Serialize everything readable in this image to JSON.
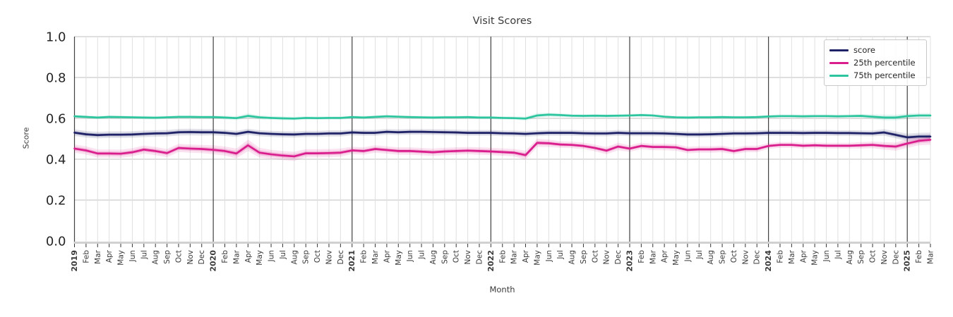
{
  "figure": {
    "title": "Visit Scores",
    "xlabel": "Month",
    "ylabel": "Score"
  },
  "chart_data": {
    "type": "line",
    "title": "Visit Scores",
    "xlabel": "Month",
    "ylabel": "Score",
    "ylim": [
      0.0,
      1.0
    ],
    "yticks": [
      0.0,
      0.2,
      0.4,
      0.6,
      0.8,
      1.0
    ],
    "grid": true,
    "legend_position": "upper right",
    "x_labels": [
      "2019",
      "Feb",
      "Mar",
      "Apr",
      "May",
      "Jun",
      "Jul",
      "Aug",
      "Sep",
      "Oct",
      "Nov",
      "Dec",
      "2020",
      "Feb",
      "Mar",
      "Apr",
      "May",
      "Jun",
      "Jul",
      "Aug",
      "Sep",
      "Oct",
      "Nov",
      "Dec",
      "2021",
      "Feb",
      "Mar",
      "Apr",
      "May",
      "Jun",
      "Jul",
      "Aug",
      "Sep",
      "Oct",
      "Nov",
      "Dec",
      "2022",
      "Feb",
      "Mar",
      "Apr",
      "May",
      "Jun",
      "Jul",
      "Aug",
      "Sep",
      "Oct",
      "Nov",
      "Dec",
      "2023",
      "Feb",
      "Mar",
      "Apr",
      "May",
      "Jun",
      "Jul",
      "Aug",
      "Sep",
      "Oct",
      "Nov",
      "Dec",
      "2024",
      "Feb",
      "Mar",
      "Apr",
      "May",
      "Jun",
      "Jul",
      "Aug",
      "Sep",
      "Oct",
      "Nov",
      "Dec",
      "2025",
      "Feb",
      "Mar"
    ],
    "series": [
      {
        "name": "score",
        "color": "#1f2266",
        "values": [
          0.53,
          0.522,
          0.518,
          0.52,
          0.52,
          0.521,
          0.524,
          0.526,
          0.527,
          0.532,
          0.533,
          0.532,
          0.532,
          0.529,
          0.524,
          0.534,
          0.527,
          0.524,
          0.522,
          0.521,
          0.524,
          0.524,
          0.526,
          0.526,
          0.531,
          0.529,
          0.529,
          0.534,
          0.532,
          0.534,
          0.534,
          0.533,
          0.532,
          0.531,
          0.529,
          0.529,
          0.529,
          0.527,
          0.526,
          0.524,
          0.527,
          0.529,
          0.529,
          0.529,
          0.527,
          0.526,
          0.526,
          0.529,
          0.527,
          0.527,
          0.527,
          0.526,
          0.524,
          0.521,
          0.521,
          0.522,
          0.524,
          0.526,
          0.526,
          0.527,
          0.529,
          0.529,
          0.529,
          0.528,
          0.529,
          0.529,
          0.528,
          0.528,
          0.527,
          0.526,
          0.531,
          0.519,
          0.507,
          0.511,
          0.511
        ],
        "band_halfwidth": [
          0.016,
          0.016,
          0.016,
          0.016,
          0.016,
          0.016,
          0.016,
          0.016,
          0.016,
          0.016,
          0.016,
          0.016,
          0.015,
          0.015,
          0.015,
          0.015,
          0.015,
          0.015,
          0.015,
          0.015,
          0.015,
          0.015,
          0.015,
          0.015,
          0.014,
          0.014,
          0.014,
          0.014,
          0.014,
          0.014,
          0.014,
          0.014,
          0.014,
          0.014,
          0.014,
          0.014,
          0.014,
          0.014,
          0.014,
          0.014,
          0.014,
          0.014,
          0.014,
          0.014,
          0.014,
          0.014,
          0.014,
          0.014,
          0.014,
          0.014,
          0.014,
          0.014,
          0.014,
          0.014,
          0.014,
          0.014,
          0.014,
          0.014,
          0.014,
          0.014,
          0.014,
          0.014,
          0.014,
          0.014,
          0.014,
          0.014,
          0.014,
          0.014,
          0.014,
          0.014,
          0.016,
          0.017,
          0.018,
          0.018,
          0.019
        ]
      },
      {
        "name": "25th percentile",
        "color": "#da1d8c",
        "values": [
          0.452,
          0.443,
          0.428,
          0.428,
          0.427,
          0.434,
          0.447,
          0.44,
          0.43,
          0.455,
          0.452,
          0.45,
          0.446,
          0.44,
          0.428,
          0.468,
          0.432,
          0.424,
          0.418,
          0.414,
          0.429,
          0.429,
          0.43,
          0.432,
          0.443,
          0.44,
          0.45,
          0.445,
          0.44,
          0.44,
          0.437,
          0.434,
          0.438,
          0.44,
          0.442,
          0.44,
          0.438,
          0.435,
          0.432,
          0.42,
          0.48,
          0.478,
          0.472,
          0.47,
          0.465,
          0.455,
          0.442,
          0.462,
          0.452,
          0.465,
          0.46,
          0.46,
          0.458,
          0.445,
          0.448,
          0.448,
          0.45,
          0.44,
          0.45,
          0.45,
          0.465,
          0.47,
          0.47,
          0.466,
          0.468,
          0.466,
          0.466,
          0.466,
          0.468,
          0.47,
          0.465,
          0.462,
          0.477,
          0.49,
          0.495
        ],
        "band_halfwidth": [
          0.02,
          0.02,
          0.02,
          0.02,
          0.02,
          0.02,
          0.02,
          0.02,
          0.02,
          0.02,
          0.02,
          0.02,
          0.022,
          0.022,
          0.024,
          0.028,
          0.024,
          0.022,
          0.022,
          0.022,
          0.02,
          0.02,
          0.02,
          0.02,
          0.018,
          0.018,
          0.018,
          0.018,
          0.018,
          0.018,
          0.018,
          0.018,
          0.018,
          0.018,
          0.018,
          0.018,
          0.018,
          0.018,
          0.018,
          0.022,
          0.02,
          0.018,
          0.016,
          0.016,
          0.016,
          0.016,
          0.018,
          0.018,
          0.016,
          0.016,
          0.016,
          0.016,
          0.016,
          0.016,
          0.016,
          0.016,
          0.016,
          0.016,
          0.016,
          0.016,
          0.014,
          0.014,
          0.014,
          0.014,
          0.014,
          0.014,
          0.014,
          0.014,
          0.016,
          0.016,
          0.018,
          0.02,
          0.022,
          0.022,
          0.024
        ]
      },
      {
        "name": "75th percentile",
        "color": "#2cc59e",
        "values": [
          0.61,
          0.607,
          0.604,
          0.607,
          0.606,
          0.605,
          0.604,
          0.603,
          0.605,
          0.607,
          0.607,
          0.606,
          0.606,
          0.604,
          0.601,
          0.612,
          0.605,
          0.602,
          0.6,
          0.599,
          0.602,
          0.601,
          0.602,
          0.602,
          0.606,
          0.604,
          0.607,
          0.61,
          0.608,
          0.606,
          0.605,
          0.604,
          0.605,
          0.605,
          0.606,
          0.604,
          0.604,
          0.602,
          0.601,
          0.599,
          0.614,
          0.618,
          0.616,
          0.613,
          0.612,
          0.613,
          0.612,
          0.613,
          0.614,
          0.616,
          0.614,
          0.608,
          0.605,
          0.604,
          0.605,
          0.605,
          0.606,
          0.605,
          0.605,
          0.606,
          0.609,
          0.611,
          0.611,
          0.61,
          0.611,
          0.611,
          0.61,
          0.611,
          0.612,
          0.608,
          0.604,
          0.604,
          0.611,
          0.614,
          0.614
        ],
        "band_halfwidth": [
          0.008,
          0.008,
          0.008,
          0.008,
          0.008,
          0.008,
          0.008,
          0.008,
          0.008,
          0.008,
          0.008,
          0.008,
          0.009,
          0.009,
          0.01,
          0.012,
          0.01,
          0.009,
          0.009,
          0.009,
          0.008,
          0.008,
          0.008,
          0.008,
          0.008,
          0.008,
          0.008,
          0.008,
          0.008,
          0.008,
          0.008,
          0.008,
          0.008,
          0.008,
          0.008,
          0.008,
          0.008,
          0.008,
          0.008,
          0.01,
          0.012,
          0.01,
          0.009,
          0.008,
          0.008,
          0.008,
          0.008,
          0.008,
          0.008,
          0.008,
          0.008,
          0.008,
          0.008,
          0.008,
          0.008,
          0.008,
          0.008,
          0.008,
          0.008,
          0.008,
          0.008,
          0.008,
          0.008,
          0.008,
          0.008,
          0.008,
          0.008,
          0.008,
          0.01,
          0.012,
          0.014,
          0.014,
          0.013,
          0.012,
          0.012
        ]
      }
    ]
  },
  "legend": {
    "items": [
      {
        "label": "score"
      },
      {
        "label": "25th percentile"
      },
      {
        "label": "75th percentile"
      }
    ]
  },
  "style": {
    "grid_month_color": "#e0e0e0",
    "grid_year_color": "#404040",
    "grid_h_color": "#cccccc",
    "bottom_line_color": "#d0d0d0",
    "tick_color": "#333333",
    "ytick_text_color": "#262626",
    "xtick_text_color": "#3a3a3a"
  }
}
